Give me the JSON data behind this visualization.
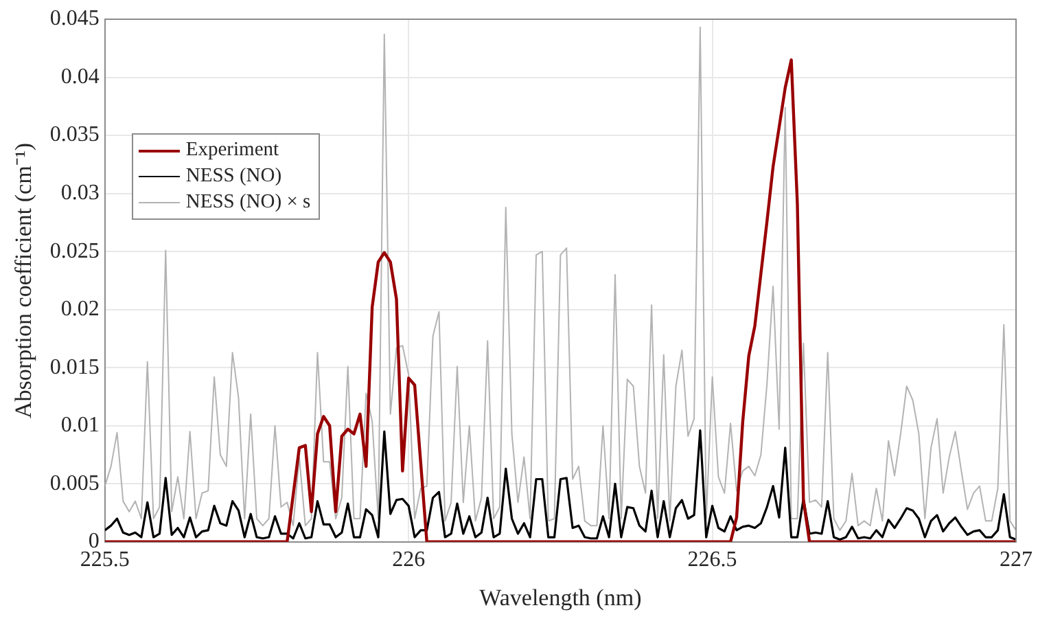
{
  "chart_data": {
    "type": "line",
    "xlabel": "Wavelength (nm)",
    "ylabel": "Absorption coefficient (cm⁻¹)",
    "xlim": [
      225.5,
      227
    ],
    "xticks": [
      225.5,
      226,
      226.5,
      227
    ],
    "ylim": [
      0,
      0.045
    ],
    "yticks": [
      0,
      0.005,
      0.01,
      0.015,
      0.02,
      0.025,
      0.03,
      0.035,
      0.04,
      0.045
    ],
    "grid": true,
    "legend": "top left",
    "x": [
      225.5,
      225.51,
      225.52,
      225.53,
      225.54,
      225.55,
      225.56,
      225.57,
      225.58,
      225.59,
      225.6,
      225.61,
      225.62,
      225.63,
      225.64,
      225.65,
      225.66,
      225.67,
      225.68,
      225.69,
      225.7,
      225.71,
      225.72,
      225.73,
      225.74,
      225.75,
      225.76,
      225.77,
      225.78,
      225.79,
      225.8,
      225.81,
      225.82,
      225.83,
      225.84,
      225.85,
      225.86,
      225.87,
      225.88,
      225.89,
      225.9,
      225.91,
      225.92,
      225.93,
      225.94,
      225.95,
      225.96,
      225.97,
      225.98,
      225.99,
      226,
      226.01,
      226.02,
      226.03,
      226.04,
      226.05,
      226.06,
      226.07,
      226.08,
      226.09,
      226.1,
      226.11,
      226.12,
      226.13,
      226.14,
      226.15,
      226.16,
      226.17,
      226.18,
      226.19,
      226.2,
      226.21,
      226.22,
      226.23,
      226.24,
      226.25,
      226.26,
      226.27,
      226.28,
      226.29,
      226.3,
      226.31,
      226.32,
      226.33,
      226.34,
      226.35,
      226.36,
      226.37,
      226.38,
      226.39,
      226.4,
      226.41,
      226.42,
      226.43,
      226.44,
      226.45,
      226.46,
      226.47,
      226.48,
      226.49,
      226.5,
      226.51,
      226.52,
      226.53,
      226.54,
      226.55,
      226.56,
      226.57,
      226.58,
      226.59,
      226.6,
      226.61,
      226.62,
      226.63,
      226.64,
      226.65,
      226.66,
      226.67,
      226.68,
      226.69,
      226.7,
      226.71,
      226.72,
      226.73,
      226.74,
      226.75,
      226.76,
      226.77,
      226.78,
      226.79,
      226.8,
      226.81,
      226.82,
      226.83,
      226.84,
      226.85,
      226.86,
      226.87,
      226.88,
      226.89,
      226.9,
      226.91,
      226.92,
      226.93,
      226.94,
      226.95,
      226.96,
      226.97,
      226.98,
      226.99,
      227
    ],
    "series": [
      {
        "name": "Experiment",
        "color": "#990000",
        "x": [
          225.5,
          225.8,
          225.82,
          225.83,
          225.84,
          225.85,
          225.86,
          225.87,
          225.88,
          225.89,
          225.9,
          225.91,
          225.92,
          225.93,
          225.94,
          225.95,
          225.96,
          225.97,
          225.98,
          225.99,
          226,
          226.01,
          226.03,
          226.53,
          226.54,
          226.55,
          226.56,
          226.57,
          226.59,
          226.6,
          226.62,
          226.63,
          226.64,
          226.65,
          226.66,
          227
        ],
        "values": [
          0,
          0,
          0.0081,
          0.0083,
          0.0026,
          0.0093,
          0.0108,
          0.01,
          0.0026,
          0.0091,
          0.0097,
          0.0093,
          0.011,
          0.0065,
          0.0202,
          0.0241,
          0.0249,
          0.0241,
          0.0209,
          0.0061,
          0.0141,
          0.0135,
          0,
          0,
          0.0021,
          0.0103,
          0.016,
          0.0186,
          0.0276,
          0.0323,
          0.0391,
          0.0415,
          0.0291,
          0.0036,
          0,
          0
        ]
      },
      {
        "name": "NESS (NO)",
        "color": "#000000",
        "values": [
          0.001,
          0.0014,
          0.002,
          0.0008,
          0.0006,
          0.0008,
          0.0004,
          0.0034,
          0.0004,
          0.0007,
          0.0055,
          0.0006,
          0.0012,
          0.0004,
          0.0021,
          0.0004,
          0.0009,
          0.001,
          0.0031,
          0.0016,
          0.0014,
          0.0035,
          0.0027,
          0.0004,
          0.0024,
          0.0004,
          0.0003,
          0.0004,
          0.0022,
          0.0007,
          0.0007,
          0.0003,
          0.0016,
          0.0003,
          0.0004,
          0.0035,
          0.0015,
          0.0015,
          0.0004,
          0.0008,
          0.0033,
          0.0004,
          0.0004,
          0.0028,
          0.0023,
          0.0004,
          0.0095,
          0.0024,
          0.0036,
          0.0037,
          0.0031,
          0.0004,
          0.001,
          0.001,
          0.0038,
          0.0043,
          0.0004,
          0.0007,
          0.0033,
          0.0007,
          0.0022,
          0.0004,
          0.0008,
          0.0038,
          0.0004,
          0.0007,
          0.0063,
          0.002,
          0.0007,
          0.0016,
          0.0004,
          0.0054,
          0.0054,
          0.0004,
          0.0004,
          0.0054,
          0.0055,
          0.0012,
          0.0014,
          0.0004,
          0.0003,
          0.0003,
          0.0022,
          0.0004,
          0.005,
          0.0004,
          0.003,
          0.0029,
          0.0014,
          0.0009,
          0.0044,
          0.0004,
          0.0035,
          0.0004,
          0.0029,
          0.0036,
          0.002,
          0.0023,
          0.0096,
          0.0004,
          0.0031,
          0.0012,
          0.0009,
          0.0022,
          0.001,
          0.0013,
          0.0014,
          0.0012,
          0.0016,
          0.003,
          0.0048,
          0.0021,
          0.0081,
          0.0004,
          0.0004,
          0.0037,
          0.0007,
          0.0008,
          0.0007,
          0.0035,
          0.0004,
          0.0002,
          0.0004,
          0.0013,
          0.0003,
          0.0004,
          0.0003,
          0.001,
          0.0004,
          0.0019,
          0.0012,
          0.002,
          0.0029,
          0.0027,
          0.002,
          0.0004,
          0.0018,
          0.0023,
          0.0009,
          0.0016,
          0.0021,
          0.0013,
          0.0006,
          0.0009,
          0.001,
          0.0004,
          0.0004,
          0.001,
          0.0041,
          0.0004,
          0.0002
        ]
      },
      {
        "name": "NESS (NO) × s",
        "color": "#b3b3b3",
        "values": [
          0.0048,
          0.0065,
          0.0094,
          0.0035,
          0.0026,
          0.0035,
          0.002,
          0.0155,
          0.002,
          0.003,
          0.0251,
          0.0026,
          0.0056,
          0.002,
          0.0095,
          0.002,
          0.0042,
          0.0044,
          0.0142,
          0.0075,
          0.0065,
          0.0163,
          0.0124,
          0.002,
          0.011,
          0.002,
          0.0014,
          0.002,
          0.01,
          0.003,
          0.0034,
          0.0014,
          0.0073,
          0.0014,
          0.002,
          0.0163,
          0.0069,
          0.0069,
          0.002,
          0.0038,
          0.0151,
          0.002,
          0.002,
          0.0128,
          0.0104,
          0.002,
          0.0437,
          0.011,
          0.0167,
          0.0169,
          0.0144,
          0.002,
          0.0046,
          0.0048,
          0.0177,
          0.0198,
          0.0018,
          0.0034,
          0.0151,
          0.0034,
          0.01,
          0.0018,
          0.0038,
          0.0173,
          0.002,
          0.003,
          0.0288,
          0.0093,
          0.0034,
          0.0073,
          0.002,
          0.0247,
          0.025,
          0.0018,
          0.002,
          0.0247,
          0.0253,
          0.0054,
          0.0065,
          0.0018,
          0.0014,
          0.0014,
          0.01,
          0.002,
          0.023,
          0.002,
          0.014,
          0.0134,
          0.0065,
          0.0042,
          0.0204,
          0.002,
          0.0161,
          0.0018,
          0.0134,
          0.0165,
          0.0091,
          0.0106,
          0.0443,
          0.002,
          0.0142,
          0.0056,
          0.0042,
          0.0102,
          0.0044,
          0.0061,
          0.0065,
          0.0057,
          0.0075,
          0.0136,
          0.022,
          0.0097,
          0.0374,
          0.002,
          0.002,
          0.0171,
          0.0034,
          0.0036,
          0.003,
          0.0163,
          0.002,
          0.001,
          0.0018,
          0.0059,
          0.0014,
          0.0018,
          0.0014,
          0.0046,
          0.0018,
          0.0087,
          0.0057,
          0.0093,
          0.0134,
          0.0122,
          0.0093,
          0.002,
          0.0081,
          0.0106,
          0.0042,
          0.0073,
          0.0095,
          0.0061,
          0.0028,
          0.0042,
          0.0048,
          0.0018,
          0.0018,
          0.0046,
          0.0187,
          0.0018,
          0.001
        ]
      }
    ]
  }
}
